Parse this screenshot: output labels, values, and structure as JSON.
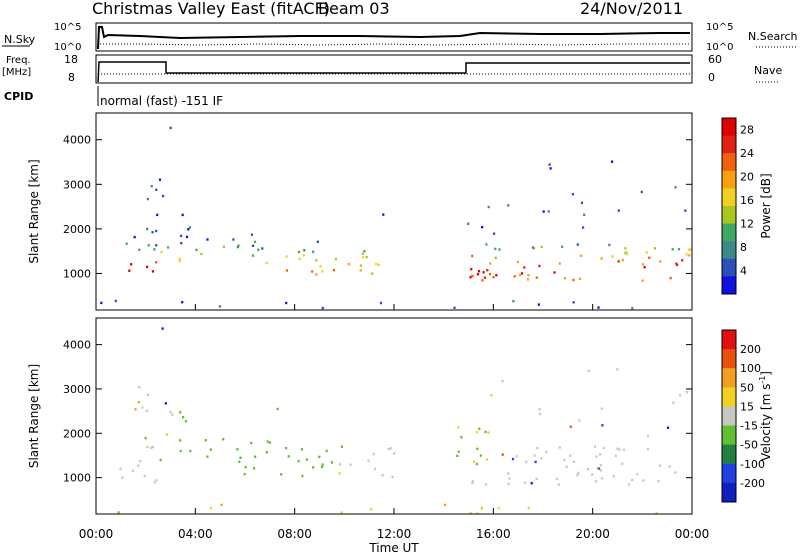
{
  "header": {
    "title": "Christmas Valley East (fitACF)",
    "beam": "Beam 03",
    "date": "24/Nov/2011"
  },
  "summary_panels": {
    "nsky_label": "N.Sky",
    "nsky_ticks": [
      "10^5",
      "10^0"
    ],
    "nsearch_label": "N.Search",
    "nsearch_ticks": [
      "10^5",
      "10^0"
    ],
    "freq_label": "Freq.",
    "freq_unit": "[MHz]",
    "freq_ticks": [
      "18",
      "8"
    ],
    "nave_label": "Nave",
    "nave_ticks": [
      "60",
      "0"
    ],
    "cpid_label": "CPID",
    "cpid_text": "normal (fast) -151 IF"
  },
  "chart_data": [
    {
      "type": "heatmap",
      "name": "power",
      "ylabel": "Slant Range [km]",
      "xlabel": "Time UT",
      "x_ticks": [
        "00:00",
        "04:00",
        "08:00",
        "12:00",
        "16:00",
        "20:00",
        "00:00"
      ],
      "x_range_hours": [
        0,
        24
      ],
      "y_ticks": [
        1000,
        2000,
        3000,
        4000
      ],
      "y_range_km": [
        180,
        4600
      ],
      "colorbar": {
        "label": "Power [dB]",
        "ticks": [
          "4",
          "8",
          "12",
          "16",
          "20",
          "24",
          "28"
        ],
        "range": [
          0,
          30
        ],
        "colors": [
          "#1010e0",
          "#2a4fb8",
          "#3b8a8a",
          "#40a860",
          "#a8c820",
          "#f0d020",
          "#f8a010",
          "#f06010",
          "#e02010",
          "#e00000"
        ]
      }
    },
    {
      "type": "heatmap",
      "name": "velocity",
      "ylabel": "Slant Range [km]",
      "xlabel": "Time UT",
      "x_ticks": [
        "00:00",
        "04:00",
        "08:00",
        "12:00",
        "16:00",
        "20:00",
        "00:00"
      ],
      "x_range_hours": [
        0,
        24
      ],
      "y_ticks": [
        1000,
        2000,
        3000,
        4000
      ],
      "y_range_km": [
        180,
        4600
      ],
      "colorbar": {
        "label": "Velocity [m s",
        "label_sup": "-1",
        "label_end": "]",
        "ticks": [
          "200",
          "100",
          "50",
          "15",
          "-15",
          "-50",
          "-100",
          "-200"
        ],
        "colors": [
          "#1020c0",
          "#2040e0",
          "#208040",
          "#60c030",
          "#c8c8c0",
          "#f0d020",
          "#f0a020",
          "#e85010",
          "#e01010"
        ]
      }
    }
  ]
}
